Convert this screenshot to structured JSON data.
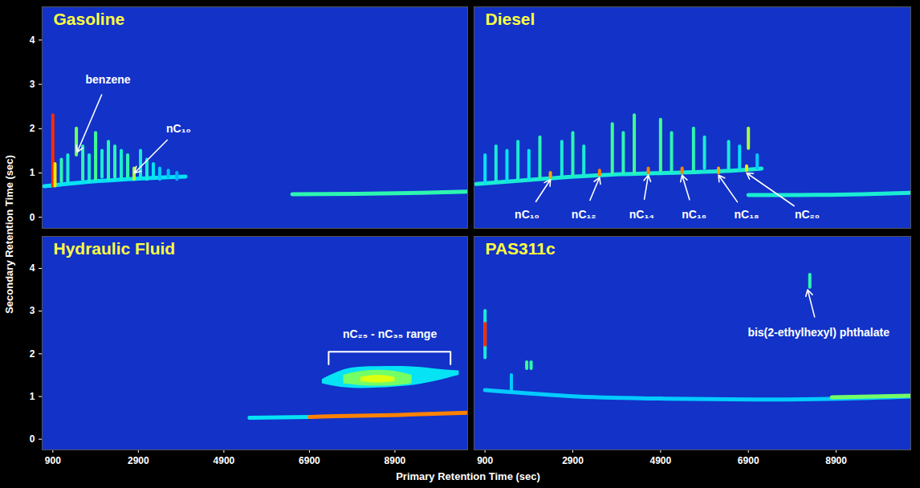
{
  "chart_data": {
    "type": "heatmap",
    "xlabel": "Primary Retention Time (sec)",
    "ylabel": "Secondary Retention Time (sec)",
    "xlim": [
      650,
      10600
    ],
    "xticks": [
      900,
      2900,
      4900,
      6900,
      8900
    ],
    "ylim": [
      -0.25,
      4.75
    ],
    "yticks": [
      0,
      1,
      2,
      3,
      4
    ],
    "zlim": [
      0,
      100
    ],
    "panels": [
      {
        "title": "Gasoline",
        "peaks": {
          "x": [
            900,
            950,
            1100,
            1250,
            1450,
            1600,
            1750,
            1900,
            2050,
            2200,
            2350,
            2500,
            2650,
            2800,
            2950,
            3100,
            3250,
            3400,
            3600,
            3800
          ],
          "y": [
            0.7,
            0.7,
            0.8,
            0.8,
            1.4,
            0.85,
            0.8,
            0.85,
            0.9,
            0.85,
            0.9,
            0.85,
            0.9,
            0.85,
            0.9,
            0.85,
            0.9,
            0.85,
            0.9,
            0.85
          ],
          "y_end": [
            2.3,
            1.2,
            1.3,
            1.4,
            2.0,
            1.6,
            1.4,
            1.9,
            1.5,
            1.7,
            1.6,
            1.5,
            1.4,
            1.1,
            1.5,
            1.3,
            1.2,
            1.1,
            1.05,
            1.0
          ],
          "intensity": [
            95,
            70,
            45,
            40,
            55,
            45,
            40,
            50,
            40,
            45,
            45,
            40,
            45,
            60,
            40,
            40,
            35,
            30,
            28,
            25
          ]
        },
        "bands": [
          {
            "x": [
              700,
              1500,
              2500,
              3500,
              4000
            ],
            "y": [
              0.7,
              0.78,
              0.85,
              0.9,
              0.92
            ],
            "intensity": 35
          },
          {
            "x": [
              6500,
              8000,
              9500,
              10600
            ],
            "y": [
              0.52,
              0.53,
              0.55,
              0.58
            ],
            "intensity": 45
          }
        ],
        "areas": [],
        "annotations": [
          {
            "text": "benzene",
            "x": 2190,
            "y": 3.1,
            "arrow_to": [
              1470,
              1.47
            ]
          },
          {
            "text": "nC₁₀",
            "x": 3840,
            "y": 2.0,
            "arrow_to": [
              2810,
              1.0
            ]
          }
        ]
      },
      {
        "title": "Diesel",
        "peaks": {
          "x": [
            900,
            1150,
            1400,
            1650,
            1900,
            2150,
            2650,
            2900,
            3150,
            3800,
            4050,
            4300,
            4900,
            5150,
            5650,
            5900,
            6450,
            6700,
            6900,
            7100,
            2390,
            3510,
            4620,
            5390,
            6220,
            6860
          ],
          "y": [
            0.75,
            0.8,
            0.8,
            0.85,
            0.85,
            0.9,
            0.9,
            0.95,
            0.95,
            1.0,
            1.0,
            1.0,
            1.05,
            1.05,
            1.05,
            1.1,
            1.1,
            1.1,
            1.55,
            1.1,
            0.9,
            0.95,
            1.0,
            1.0,
            1.0,
            1.05
          ],
          "y_end": [
            1.4,
            1.6,
            1.5,
            1.7,
            1.5,
            1.8,
            1.7,
            1.9,
            1.6,
            2.1,
            1.9,
            2.3,
            2.2,
            1.9,
            2.0,
            1.8,
            1.7,
            1.6,
            2.0,
            1.4,
            1.0,
            1.05,
            1.1,
            1.1,
            1.1,
            1.15
          ],
          "intensity": [
            35,
            40,
            35,
            40,
            35,
            45,
            40,
            45,
            40,
            50,
            45,
            50,
            50,
            45,
            45,
            40,
            40,
            35,
            60,
            30,
            80,
            85,
            85,
            85,
            80,
            70
          ]
        },
        "bands": [
          {
            "x": [
              700,
              2000,
              3500,
              5000,
              6500,
              7200
            ],
            "y": [
              0.75,
              0.85,
              0.95,
              1.0,
              1.05,
              1.1
            ],
            "intensity": 40
          },
          {
            "x": [
              6900,
              8000,
              9500,
              10600
            ],
            "y": [
              0.5,
              0.5,
              0.52,
              0.55
            ],
            "intensity": 40
          }
        ],
        "areas": [],
        "annotations": [
          {
            "text": "nC₁₀",
            "x": 1857,
            "y": 0.05,
            "arrow_to": [
              2390,
              0.85
            ]
          },
          {
            "text": "nC₁₂",
            "x": 3150,
            "y": 0.05,
            "arrow_to": [
              3510,
              0.9
            ]
          },
          {
            "text": "nC₁₄",
            "x": 4470,
            "y": 0.05,
            "arrow_to": [
              4620,
              0.95
            ]
          },
          {
            "text": "nC₁₆",
            "x": 5665,
            "y": 0.05,
            "arrow_to": [
              5390,
              0.95
            ]
          },
          {
            "text": "nC₁₈",
            "x": 6860,
            "y": 0.05,
            "arrow_to": [
              6220,
              0.95
            ]
          },
          {
            "text": "nC₂₀",
            "x": 8240,
            "y": 0.05,
            "arrow_to": [
              6860,
              1.0
            ]
          }
        ]
      },
      {
        "title": "Hydraulic Fluid",
        "peaks": {
          "x": [],
          "y": [],
          "y_end": [],
          "intensity": []
        },
        "bands": [
          {
            "x": [
              5500,
              6200,
              6900
            ],
            "y": [
              0.5,
              0.51,
              0.52
            ],
            "intensity": 35
          },
          {
            "x": [
              6900,
              7500,
              9000,
              10600
            ],
            "y": [
              0.52,
              0.54,
              0.57,
              0.62
            ],
            "intensity": 85
          }
        ],
        "areas": [
          {
            "x": [
              7200,
              7800,
              8500,
              9200,
              9800,
              10400
            ],
            "y1": [
              1.3,
              1.2,
              1.2,
              1.25,
              1.35,
              1.5
            ],
            "y2": [
              1.4,
              1.65,
              1.7,
              1.7,
              1.65,
              1.6
            ],
            "intensity": 35
          },
          {
            "x": [
              7700,
              8200,
              8800,
              9300
            ],
            "y1": [
              1.3,
              1.25,
              1.25,
              1.3
            ],
            "y2": [
              1.5,
              1.6,
              1.6,
              1.5
            ],
            "intensity": 55
          },
          {
            "x": [
              8100,
              8500,
              8900
            ],
            "y1": [
              1.35,
              1.32,
              1.35
            ],
            "y2": [
              1.45,
              1.5,
              1.45
            ],
            "intensity": 65
          }
        ],
        "annotations": [
          {
            "text": "nC₂₅ - nC₃₅ range",
            "x": 8780,
            "y": 2.45,
            "bracket": {
              "x1": 7350,
              "x2": 10200,
              "y": 2.05,
              "y_end": 1.75
            }
          }
        ]
      },
      {
        "title": "PAS311c",
        "peaks": {
          "x": [
            900,
            900,
            1500,
            1850,
            1950,
            8300
          ],
          "y": [
            1.9,
            2.2,
            1.1,
            1.65,
            1.65,
            3.55
          ],
          "y_end": [
            3.0,
            2.7,
            1.5,
            1.8,
            1.8,
            3.85
          ],
          "intensity": [
            40,
            95,
            30,
            50,
            45,
            45
          ]
        },
        "bands": [
          {
            "x": [
              900,
              3000,
              5000,
              7000,
              9000,
              10600
            ],
            "y": [
              1.15,
              1.0,
              0.95,
              0.93,
              0.95,
              1.0
            ],
            "intensity": 30
          },
          {
            "x": [
              8800,
              9700,
              10600
            ],
            "y": [
              0.98,
              1.0,
              1.02
            ],
            "intensity": 55
          }
        ],
        "areas": [],
        "annotations": [
          {
            "text": "bis(2-ethylhexyl) phthalate",
            "x": 8500,
            "y": 2.5,
            "arrow_to": [
              8250,
              3.5
            ]
          }
        ]
      }
    ]
  }
}
